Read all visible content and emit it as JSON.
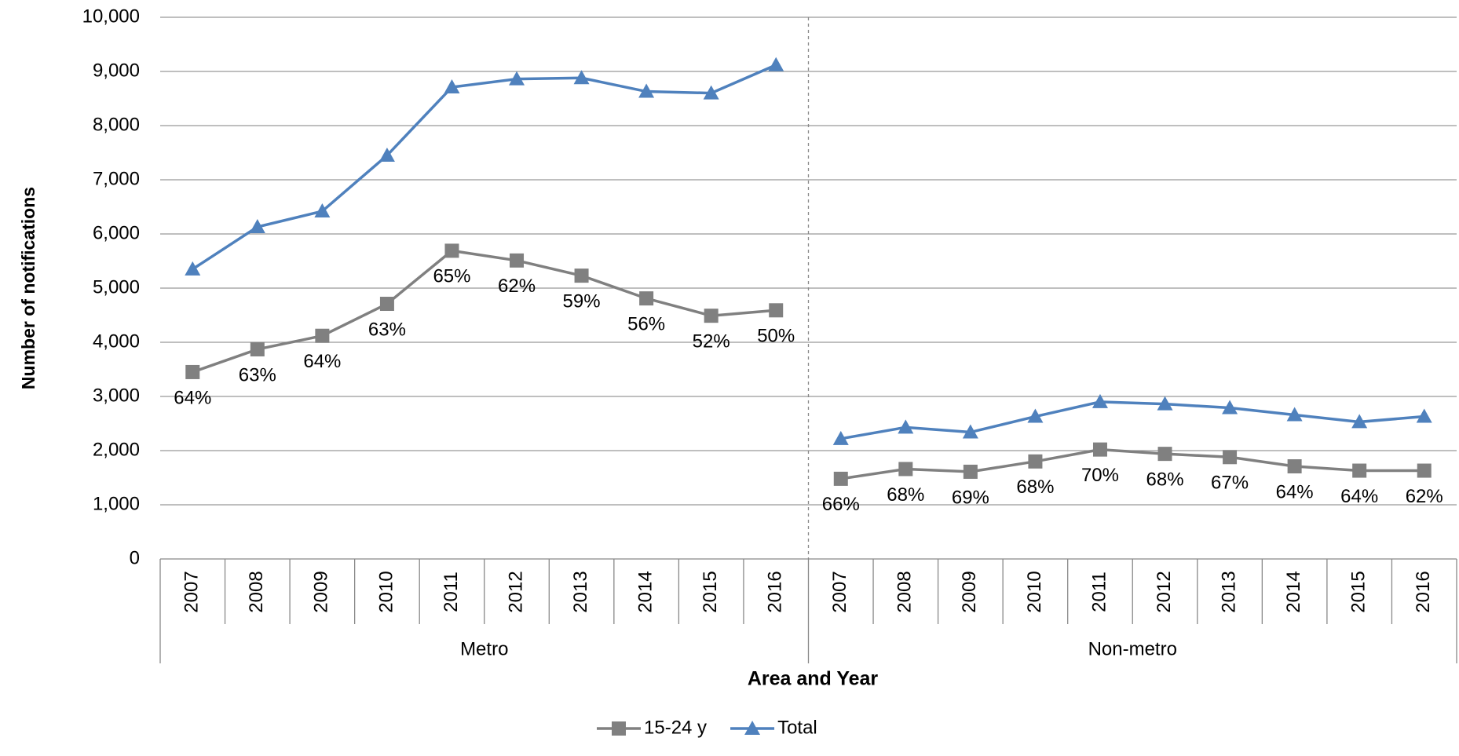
{
  "chart_data": {
    "type": "line",
    "x_label": "Area and Year",
    "y_label": "Number of notifications",
    "categories": [
      "2007",
      "2008",
      "2009",
      "2010",
      "2011",
      "2012",
      "2013",
      "2014",
      "2015",
      "2016",
      "2007",
      "2008",
      "2009",
      "2010",
      "2011",
      "2012",
      "2013",
      "2014",
      "2015",
      "2016"
    ],
    "groups": [
      "Metro",
      "Non-metro"
    ],
    "series": [
      {
        "name": "15-24 y",
        "color": "#808080",
        "marker": "square",
        "values": [
          3450,
          3870,
          4120,
          4710,
          5690,
          5510,
          5230,
          4810,
          4490,
          4590,
          1480,
          1660,
          1610,
          1800,
          2020,
          1940,
          1880,
          1710,
          1630,
          1630
        ],
        "percent_labels": [
          "64%",
          "63%",
          "64%",
          "63%",
          "65%",
          "62%",
          "59%",
          "56%",
          "52%",
          "50%",
          "66%",
          "68%",
          "69%",
          "68%",
          "70%",
          "68%",
          "67%",
          "64%",
          "64%",
          "62%"
        ]
      },
      {
        "name": "Total",
        "color": "#4f81bd",
        "marker": "triangle",
        "values": [
          5350,
          6130,
          6420,
          7450,
          8710,
          8860,
          8880,
          8630,
          8600,
          9120,
          2220,
          2430,
          2340,
          2630,
          2900,
          2860,
          2790,
          2660,
          2530,
          2630
        ]
      }
    ],
    "ylim": [
      0,
      10000
    ],
    "yticks": [
      0,
      {
        "value": 1000,
        "label": "1,000"
      },
      {
        "value": 2000,
        "label": "2,000"
      },
      {
        "value": 3000,
        "label": "3,000"
      },
      {
        "value": 4000,
        "label": "4,000"
      },
      {
        "value": 5000,
        "label": "5,000"
      },
      {
        "value": 6000,
        "label": "6,000"
      },
      {
        "value": 7000,
        "label": "7,000"
      },
      {
        "value": 8000,
        "label": "8,000"
      },
      {
        "value": 9000,
        "label": "9,000"
      },
      {
        "value": 10000,
        "label": "10,000"
      }
    ],
    "grid": true,
    "legend": "bottom"
  }
}
